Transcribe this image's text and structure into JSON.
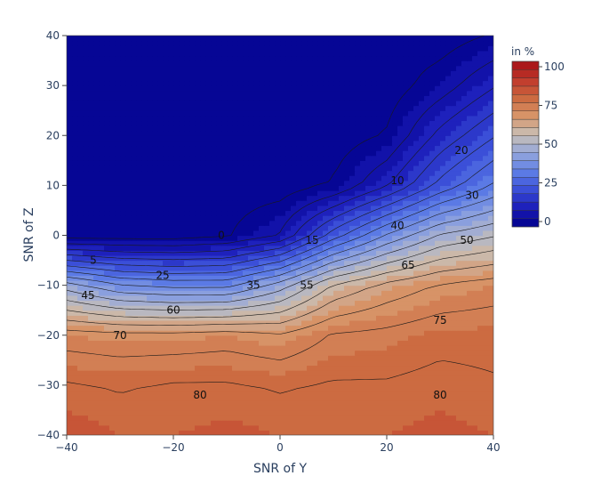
{
  "chart_data": {
    "type": "contour",
    "xlabel": "SNR of Y",
    "ylabel": "SNR of Z",
    "xlim": [
      -40,
      40
    ],
    "ylim": [
      -40,
      40
    ],
    "x_ticks": [
      "−40",
      "−20",
      "0",
      "20",
      "40"
    ],
    "y_ticks": [
      "−40",
      "−30",
      "−20",
      "−10",
      "0",
      "10",
      "20",
      "30",
      "40"
    ],
    "colorbar": {
      "title": "in %",
      "range": [
        0,
        100
      ],
      "tick_labels": [
        "0",
        "25",
        "50",
        "75",
        "100"
      ],
      "colorscale": [
        "#00008b",
        "#1a1ab8",
        "#3a4ed8",
        "#5e7ee6",
        "#93a6dc",
        "#c8bfb6",
        "#d8966a",
        "#cc6a40",
        "#c0392b",
        "#a50f15"
      ]
    },
    "z_grid_x": [
      -40,
      -30,
      -20,
      -10,
      0,
      10,
      20,
      30,
      40
    ],
    "z_grid_y": [
      -40,
      -30,
      -20,
      -10,
      0,
      10,
      20,
      30,
      40
    ],
    "z": [
      [
        82,
        80,
        80,
        81,
        80,
        80,
        80,
        81,
        80
      ],
      [
        78,
        77,
        78,
        78,
        77,
        78,
        78,
        79,
        78
      ],
      [
        70,
        69,
        69,
        70,
        68,
        73,
        74,
        76,
        76
      ],
      [
        45,
        38,
        36,
        36,
        45,
        58,
        64,
        68,
        70
      ],
      [
        0,
        0,
        0,
        2,
        8,
        25,
        38,
        48,
        52
      ],
      [
        0,
        0,
        0,
        0,
        0,
        3,
        12,
        24,
        33
      ],
      [
        0,
        0,
        0,
        0,
        0,
        0,
        3,
        14,
        22
      ],
      [
        0,
        0,
        0,
        0,
        0,
        0,
        0,
        5,
        12
      ],
      [
        0,
        0,
        0,
        0,
        0,
        0,
        0,
        0,
        3
      ]
    ],
    "contour_labels": [
      {
        "text": "0",
        "x": -11,
        "y": 0
      },
      {
        "text": "5",
        "x": -35,
        "y": -5
      },
      {
        "text": "15",
        "x": 6,
        "y": -1
      },
      {
        "text": "10",
        "x": 22,
        "y": 11
      },
      {
        "text": "20",
        "x": 34,
        "y": 17
      },
      {
        "text": "30",
        "x": 36,
        "y": 8
      },
      {
        "text": "40",
        "x": 22,
        "y": 2
      },
      {
        "text": "50",
        "x": 35,
        "y": -1
      },
      {
        "text": "25",
        "x": -22,
        "y": -8
      },
      {
        "text": "35",
        "x": -5,
        "y": -10
      },
      {
        "text": "45",
        "x": -36,
        "y": -12
      },
      {
        "text": "55",
        "x": 5,
        "y": -10
      },
      {
        "text": "65",
        "x": 24,
        "y": -6
      },
      {
        "text": "60",
        "x": -20,
        "y": -15
      },
      {
        "text": "70",
        "x": -30,
        "y": -20
      },
      {
        "text": "75",
        "x": 30,
        "y": -17
      },
      {
        "text": "80",
        "x": -15,
        "y": -32
      },
      {
        "text": "80",
        "x": 30,
        "y": -32
      }
    ]
  }
}
